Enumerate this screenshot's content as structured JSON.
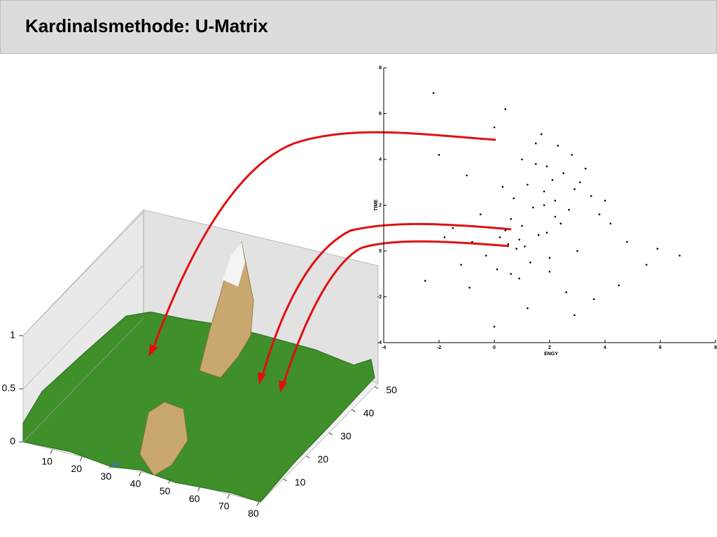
{
  "header": {
    "title": "Kardinalsmethode: U-Matrix"
  },
  "chart_data": [
    {
      "type": "surface",
      "xticks": [
        10,
        20,
        30,
        40,
        50,
        60,
        70,
        80
      ],
      "yticks": [
        10,
        20,
        30,
        40,
        50
      ],
      "zticks": [
        0,
        0.5,
        1
      ]
    },
    {
      "type": "scatter",
      "xlabel": "ENGY",
      "ylabel": "TIME",
      "color": "#000000",
      "xlim": [
        -4,
        8
      ],
      "ylim": [
        -4,
        8
      ],
      "xticks": [
        -4,
        -2,
        0,
        2,
        4,
        6,
        8
      ],
      "yticks": [
        -4,
        -2,
        0,
        2,
        4,
        6,
        8
      ],
      "x": [
        2.1,
        1.8,
        2.5,
        2.9,
        1.5,
        2.2,
        3.1,
        1.2,
        2.7,
        3.5,
        0.9,
        1.9,
        2.4,
        3.8,
        1.1,
        2.0,
        0.4,
        0.8,
        1.3,
        0.2,
        0.6,
        1.0,
        -0.3,
        0.5,
        1.6,
        -0.8,
        0.1,
        0.9,
        1.4,
        -1.2,
        0.7,
        2.3,
        -0.5,
        1.7,
        2.8,
        4.2,
        4.8,
        5.5,
        3.3,
        -1.5,
        -2.2,
        -2.0,
        0.0,
        1.0,
        1.2,
        2.6,
        3.0,
        4.5,
        -0.9,
        0.3,
        1.5,
        2.0,
        5.9,
        6.7,
        -2.5,
        -1.0,
        0.4,
        3.6,
        2.2,
        1.8,
        0.6,
        1.9,
        -1.8,
        4.0,
        0.0,
        2.9
      ],
      "y": [
        3.1,
        2.6,
        3.4,
        2.7,
        3.8,
        2.2,
        3.0,
        2.9,
        1.8,
        2.4,
        0.5,
        0.8,
        1.2,
        1.6,
        0.2,
        -0.3,
        0.9,
        0.1,
        -0.5,
        0.6,
        1.4,
        1.1,
        -0.2,
        0.3,
        0.7,
        0.4,
        -0.8,
        -1.2,
        1.9,
        -0.6,
        2.3,
        4.6,
        1.6,
        5.1,
        4.2,
        1.2,
        0.4,
        -0.6,
        3.6,
        1.0,
        6.9,
        4.2,
        5.4,
        4.0,
        -2.5,
        -1.8,
        0.0,
        -1.5,
        -1.6,
        2.8,
        4.7,
        -0.9,
        0.1,
        -0.2,
        -1.3,
        3.3,
        6.2,
        -2.1,
        1.5,
        2.0,
        -1.0,
        3.7,
        0.6,
        2.2,
        -3.3,
        -2.8
      ]
    }
  ]
}
